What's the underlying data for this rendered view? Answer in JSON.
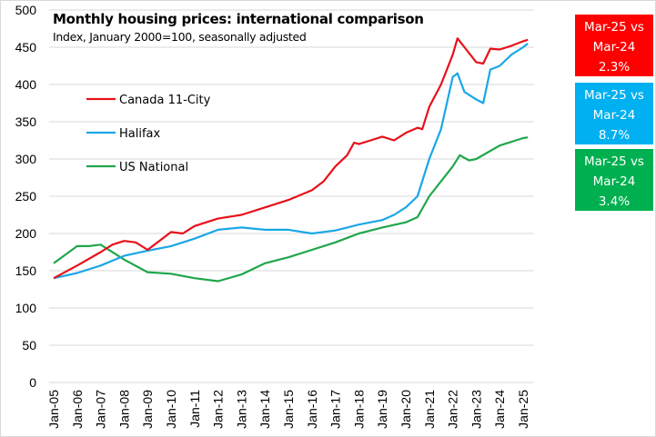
{
  "chart_data": {
    "type": "line",
    "title": "Monthly housing prices: international comparison",
    "subtitle": "Index, January 2000=100, seasonally adjusted",
    "xlabel": "",
    "ylabel": "",
    "ylim": [
      0,
      500
    ],
    "yticks": [
      0,
      50,
      100,
      150,
      200,
      250,
      300,
      350,
      400,
      450,
      500
    ],
    "xlim": [
      2005.0,
      2025.2
    ],
    "xtick_labels": [
      "Jan-05",
      "Jan-06",
      "Jan-07",
      "Jan-08",
      "Jan-09",
      "Jan-10",
      "Jan-11",
      "Jan-12",
      "Jan-13",
      "Jan-14",
      "Jan-15",
      "Jan-16",
      "Jan-17",
      "Jan-18",
      "Jan-19",
      "Jan-20",
      "Jan-21",
      "Jan-22",
      "Jan-23",
      "Jan-24",
      "Jan-25"
    ],
    "grid": true,
    "legend_position": "top-left",
    "series": [
      {
        "name": "Canada 11-City",
        "color": "#e8101a",
        "x": [
          2005.0,
          2006.0,
          2007.0,
          2007.5,
          2008.0,
          2008.5,
          2009.0,
          2009.5,
          2010.0,
          2010.5,
          2011.0,
          2012.0,
          2013.0,
          2014.0,
          2015.0,
          2016.0,
          2016.5,
          2017.0,
          2017.5,
          2017.8,
          2018.0,
          2018.5,
          2019.0,
          2019.5,
          2020.0,
          2020.5,
          2020.7,
          2021.0,
          2021.5,
          2022.0,
          2022.2,
          2022.5,
          2023.0,
          2023.3,
          2023.6,
          2024.0,
          2024.5,
          2025.0,
          2025.2
        ],
        "values": [
          140,
          157,
          175,
          185,
          190,
          188,
          178,
          190,
          202,
          200,
          210,
          220,
          225,
          235,
          245,
          258,
          270,
          290,
          305,
          322,
          320,
          325,
          330,
          325,
          335,
          342,
          340,
          370,
          400,
          440,
          462,
          450,
          430,
          428,
          448,
          447,
          452,
          458,
          460
        ]
      },
      {
        "name": "Halifax",
        "color": "#1aa7e6",
        "x": [
          2005.0,
          2006.0,
          2007.0,
          2008.0,
          2009.0,
          2010.0,
          2011.0,
          2012.0,
          2013.0,
          2014.0,
          2015.0,
          2016.0,
          2017.0,
          2018.0,
          2019.0,
          2019.5,
          2020.0,
          2020.5,
          2021.0,
          2021.5,
          2022.0,
          2022.2,
          2022.5,
          2023.0,
          2023.3,
          2023.6,
          2024.0,
          2024.5,
          2025.0,
          2025.2
        ],
        "values": [
          140,
          147,
          157,
          170,
          177,
          183,
          193,
          205,
          208,
          205,
          205,
          200,
          204,
          212,
          218,
          225,
          235,
          250,
          300,
          340,
          410,
          415,
          390,
          380,
          375,
          420,
          425,
          440,
          450,
          455
        ]
      },
      {
        "name": "US National",
        "color": "#1fa64b",
        "x": [
          2005.0,
          2006.0,
          2006.5,
          2007.0,
          2008.0,
          2009.0,
          2010.0,
          2011.0,
          2012.0,
          2013.0,
          2014.0,
          2015.0,
          2016.0,
          2017.0,
          2018.0,
          2019.0,
          2020.0,
          2020.5,
          2021.0,
          2022.0,
          2022.3,
          2022.7,
          2023.0,
          2024.0,
          2025.0,
          2025.2
        ],
        "values": [
          160,
          183,
          183,
          185,
          165,
          148,
          146,
          140,
          136,
          145,
          160,
          168,
          178,
          188,
          200,
          208,
          215,
          222,
          250,
          290,
          305,
          298,
          300,
          318,
          328,
          329
        ]
      }
    ]
  },
  "badges": [
    {
      "line1": "Mar-25 vs",
      "line2": "Mar-24",
      "value": "2.3%",
      "color": "#ff0000",
      "series": "Canada 11-City"
    },
    {
      "line1": "Mar-25 vs",
      "line2": "Mar-24",
      "value": "8.7%",
      "color": "#00b0f0",
      "series": "Halifax"
    },
    {
      "line1": "Mar-25 vs",
      "line2": "Mar-24",
      "value": "3.4%",
      "color": "#00b050",
      "series": "US National"
    }
  ]
}
